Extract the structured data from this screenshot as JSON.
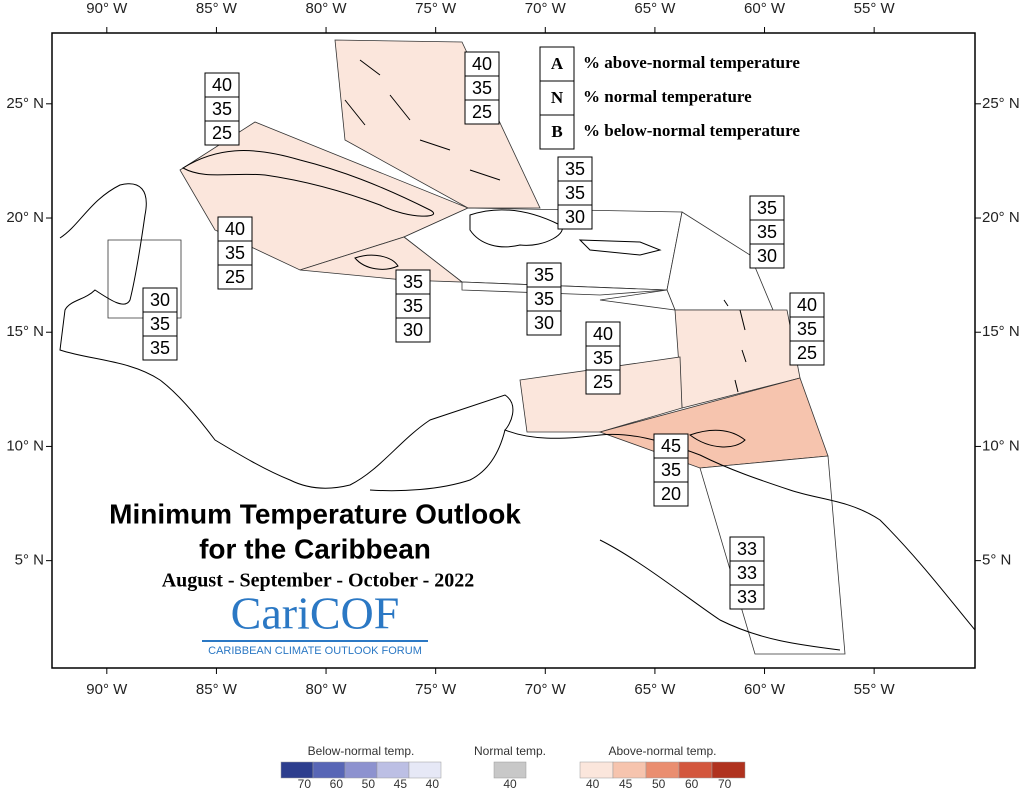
{
  "map": {
    "title": [
      "Minimum Temperature Outlook",
      "for the Caribbean"
    ],
    "subtitle": "August - September - October - 2022",
    "logo": {
      "name": "CariCOF",
      "tagline": "CARIBBEAN CLIMATE OUTLOOK FORUM"
    },
    "key": [
      {
        "letter": "A",
        "label": "% above-normal temperature"
      },
      {
        "letter": "N",
        "label": "% normal temperature"
      },
      {
        "letter": "B",
        "label": "% below-normal temperature"
      }
    ],
    "xlim": [
      -92.5,
      -50.4
    ],
    "ylim": [
      0.3,
      28.1
    ],
    "xticks": [
      {
        "value": -90,
        "label": "90° W"
      },
      {
        "value": -85,
        "label": "85° W"
      },
      {
        "value": -80,
        "label": "80° W"
      },
      {
        "value": -75,
        "label": "75° W"
      },
      {
        "value": -70,
        "label": "70° W"
      },
      {
        "value": -65,
        "label": "65° W"
      },
      {
        "value": -60,
        "label": "60° W"
      },
      {
        "value": -55,
        "label": "55° W"
      }
    ],
    "yticks": [
      {
        "value": 25,
        "label": "25° N"
      },
      {
        "value": 20,
        "label": "20° N"
      },
      {
        "value": 15,
        "label": "15° N"
      },
      {
        "value": 10,
        "label": "10° N"
      },
      {
        "value": 5,
        "label": "5° N"
      }
    ],
    "regions": [
      {
        "above": 40,
        "normal": 35,
        "below": 25
      },
      {
        "above": 40,
        "normal": 35,
        "below": 25
      },
      {
        "above": 35,
        "normal": 35,
        "below": 30
      },
      {
        "above": 35,
        "normal": 35,
        "below": 30
      },
      {
        "above": 40,
        "normal": 35,
        "below": 25
      },
      {
        "above": 30,
        "normal": 35,
        "below": 35
      },
      {
        "above": 35,
        "normal": 35,
        "below": 30
      },
      {
        "above": 35,
        "normal": 35,
        "below": 30
      },
      {
        "above": 40,
        "normal": 35,
        "below": 25
      },
      {
        "above": 40,
        "normal": 35,
        "below": 25
      },
      {
        "above": 45,
        "normal": 35,
        "below": 20
      },
      {
        "above": 33,
        "normal": 33,
        "below": 33
      }
    ],
    "colorbar": {
      "below": {
        "title": "Below-normal temp.",
        "swatches": [
          {
            "value": 70,
            "color": "#2d3e8e"
          },
          {
            "value": 60,
            "color": "#5866b6"
          },
          {
            "value": 50,
            "color": "#8d92cf"
          },
          {
            "value": 45,
            "color": "#bcbfe4"
          },
          {
            "value": 40,
            "color": "#e6e8f6"
          }
        ]
      },
      "normal": {
        "title": "Normal temp.",
        "swatches": [
          {
            "value": 40,
            "color": "#c8c8c8"
          }
        ]
      },
      "above": {
        "title": "Above-normal temp.",
        "swatches": [
          {
            "value": 40,
            "color": "#fbe6dc"
          },
          {
            "value": 45,
            "color": "#f6c4ae"
          },
          {
            "value": 50,
            "color": "#ea8e70"
          },
          {
            "value": 60,
            "color": "#d3573e"
          },
          {
            "value": 70,
            "color": "#b0321f"
          }
        ]
      }
    }
  }
}
